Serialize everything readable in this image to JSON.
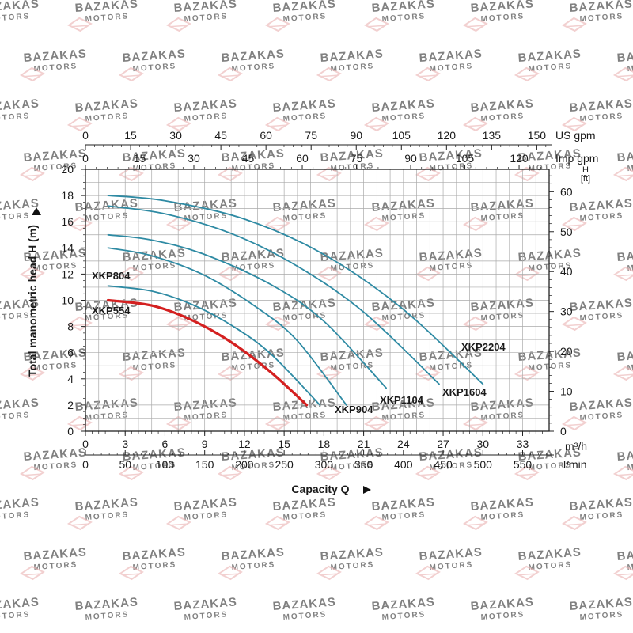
{
  "watermark": {
    "line1": "BAZAKAS",
    "line2": "MOTORS",
    "color": "#e8aaaa"
  },
  "chart_data": {
    "type": "line",
    "title": "",
    "xlabel": "Capacity Q",
    "ylabel": "Total manometric head H (m)",
    "grid": true,
    "xlim": [
      0,
      35
    ],
    "ylim": [
      0,
      20
    ],
    "axes": {
      "bottom_primary": {
        "unit": "m³/h",
        "ticks": [
          0,
          3,
          6,
          9,
          12,
          15,
          18,
          21,
          24,
          27,
          30,
          33
        ]
      },
      "bottom_secondary": {
        "unit": "l/min",
        "ticks": [
          0,
          50,
          100,
          150,
          200,
          250,
          300,
          350,
          400,
          450,
          500,
          550
        ]
      },
      "top_primary": {
        "unit": "US gpm",
        "ticks": [
          0,
          15,
          30,
          45,
          60,
          75,
          90,
          105,
          120,
          135,
          150
        ]
      },
      "top_secondary": {
        "unit": "Imp gpm",
        "ticks": [
          0,
          15,
          30,
          45,
          60,
          75,
          90,
          105,
          120
        ]
      },
      "left": {
        "unit": "m",
        "ticks": [
          0,
          2,
          4,
          6,
          8,
          10,
          12,
          14,
          16,
          18,
          20
        ]
      },
      "right": {
        "label": "H",
        "unit": "[ft]",
        "ticks": [
          0,
          10,
          20,
          30,
          40,
          50,
          60
        ]
      }
    },
    "series": [
      {
        "name": "XKP554",
        "color": "#d42020",
        "x": [
          1.7,
          5,
          8,
          11,
          14,
          16.7
        ],
        "y": [
          10.0,
          9.6,
          8.5,
          6.8,
          4.5,
          2.0
        ]
      },
      {
        "name": "XKP804",
        "color": "#2e8aa3",
        "x": [
          1.7,
          5,
          8,
          11,
          14,
          17.7
        ],
        "y": [
          11.1,
          10.7,
          9.7,
          8.1,
          5.9,
          2.0
        ]
      },
      {
        "name": "XKP904",
        "color": "#2e8aa3",
        "x": [
          1.7,
          5,
          9,
          13,
          16,
          19.7
        ],
        "y": [
          14.0,
          13.4,
          11.9,
          9.4,
          6.9,
          2.0
        ]
      },
      {
        "name": "XKP1104",
        "color": "#2e8aa3",
        "x": [
          1.7,
          5,
          9,
          14,
          18,
          22.7
        ],
        "y": [
          15.0,
          14.6,
          13.5,
          11.2,
          8.4,
          3.3
        ]
      },
      {
        "name": "XKP1604",
        "color": "#2e8aa3",
        "x": [
          1.7,
          6,
          11,
          16,
          21,
          26.7
        ],
        "y": [
          17.2,
          16.6,
          15.1,
          12.6,
          9.1,
          3.6
        ]
      },
      {
        "name": "XKP2204",
        "color": "#2e8aa3",
        "x": [
          1.7,
          6,
          12,
          18,
          24,
          30
        ],
        "y": [
          18.0,
          17.6,
          16.2,
          13.5,
          9.3,
          3.6
        ]
      }
    ],
    "annotations": [
      "XKP804",
      "XKP554",
      "XKP904",
      "XKP1104",
      "XKP1604",
      "XKP2204"
    ]
  }
}
